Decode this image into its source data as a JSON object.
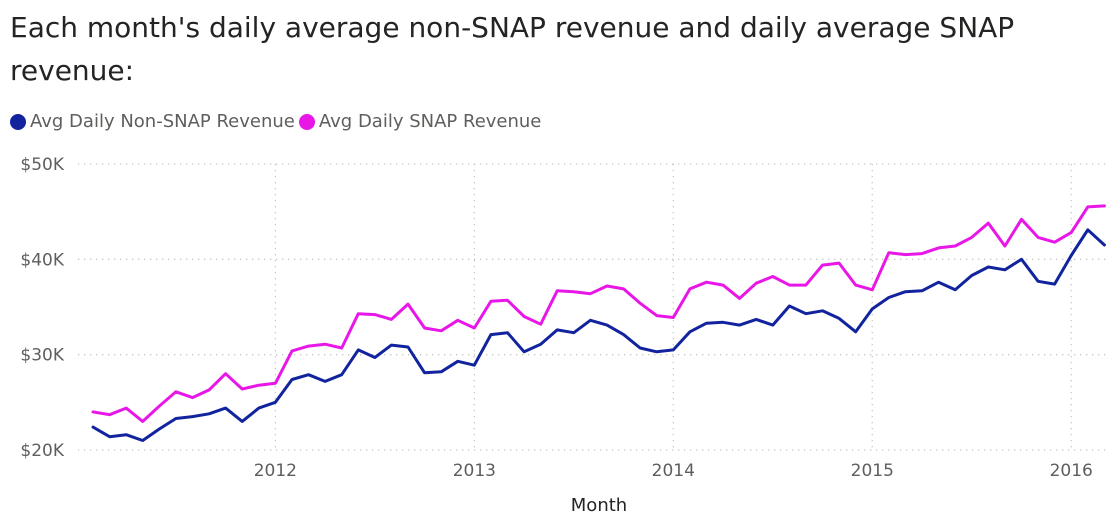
{
  "title": "Each month's daily average non-SNAP revenue and daily average SNAP revenue:",
  "chart_data": {
    "type": "line",
    "title": "Each month's daily average non-SNAP revenue and daily average SNAP revenue:",
    "xlabel": "Month",
    "ylabel": "",
    "x_start": "2011-02",
    "x_tick_labels": [
      "2012",
      "2013",
      "2014",
      "2015",
      "2016"
    ],
    "y_tick_labels": [
      "$20K",
      "$30K",
      "$40K",
      "$50K"
    ],
    "y_ticks": [
      20000,
      30000,
      40000,
      50000
    ],
    "ylim": [
      20000,
      50000
    ],
    "grid": "dotted",
    "legend_position": "top-left",
    "x": [
      "2011-02",
      "2011-03",
      "2011-04",
      "2011-05",
      "2011-06",
      "2011-07",
      "2011-08",
      "2011-09",
      "2011-10",
      "2011-11",
      "2011-12",
      "2012-01",
      "2012-02",
      "2012-03",
      "2012-04",
      "2012-05",
      "2012-06",
      "2012-07",
      "2012-08",
      "2012-09",
      "2012-10",
      "2012-11",
      "2012-12",
      "2013-01",
      "2013-02",
      "2013-03",
      "2013-04",
      "2013-05",
      "2013-06",
      "2013-07",
      "2013-08",
      "2013-09",
      "2013-10",
      "2013-11",
      "2013-12",
      "2014-01",
      "2014-02",
      "2014-03",
      "2014-04",
      "2014-05",
      "2014-06",
      "2014-07",
      "2014-08",
      "2014-09",
      "2014-10",
      "2014-11",
      "2014-12",
      "2015-01",
      "2015-02",
      "2015-03",
      "2015-04",
      "2015-05",
      "2015-06",
      "2015-07",
      "2015-08",
      "2015-09",
      "2015-10",
      "2015-11",
      "2015-12",
      "2016-01",
      "2016-02",
      "2016-03"
    ],
    "series": [
      {
        "name": "Avg Daily Non-SNAP Revenue",
        "color": "#12239e",
        "values": [
          22400,
          21400,
          21600,
          21000,
          22200,
          23300,
          23500,
          23800,
          24400,
          23000,
          24400,
          25000,
          27400,
          27900,
          27200,
          27900,
          30500,
          29700,
          31000,
          30800,
          28100,
          28200,
          29300,
          28900,
          32100,
          32300,
          30300,
          31100,
          32600,
          32300,
          33600,
          33100,
          32100,
          30700,
          30300,
          30500,
          32400,
          33300,
          33400,
          33100,
          33700,
          33100,
          35100,
          34300,
          34600,
          33800,
          32400,
          34800,
          36000,
          36600,
          36700,
          37600,
          36800,
          38300,
          39200,
          38900,
          40000,
          37700,
          37400,
          40400,
          43100,
          41500
        ]
      },
      {
        "name": "Avg Daily SNAP Revenue",
        "color": "#e817e8",
        "values": [
          24000,
          23700,
          24400,
          23000,
          24600,
          26100,
          25500,
          26300,
          28000,
          26400,
          26800,
          27000,
          30400,
          30900,
          31100,
          30700,
          34300,
          34200,
          33700,
          35300,
          32800,
          32500,
          33600,
          32800,
          35600,
          35700,
          34000,
          33200,
          36700,
          36600,
          36400,
          37200,
          36900,
          35400,
          34100,
          33900,
          36900,
          37600,
          37300,
          35900,
          37500,
          38200,
          37300,
          37300,
          39400,
          39600,
          37300,
          36800,
          40700,
          40500,
          40600,
          41200,
          41400,
          42300,
          43800,
          41400,
          44200,
          42300,
          41800,
          42800,
          45500,
          45600
        ]
      }
    ]
  }
}
